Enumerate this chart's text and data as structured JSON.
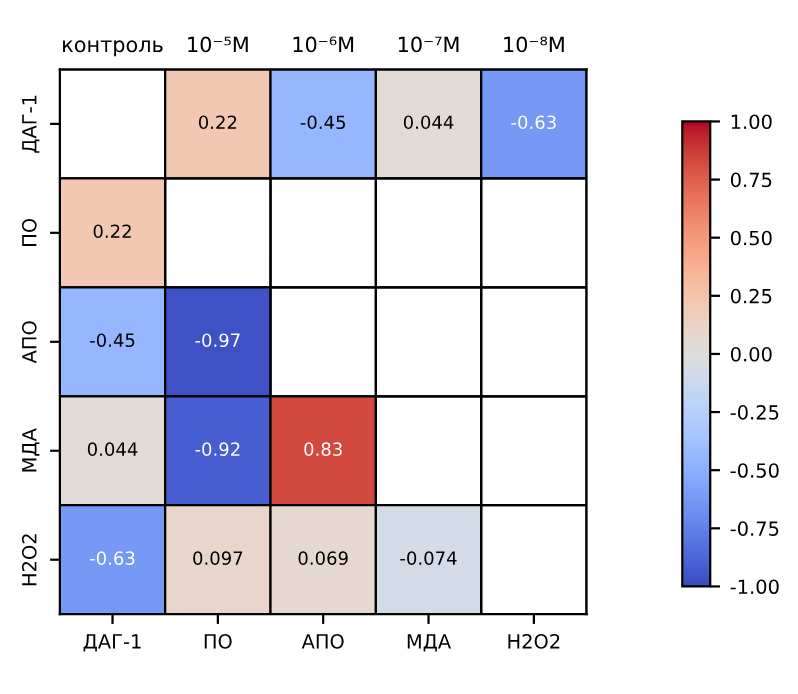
{
  "chart_data": {
    "type": "heatmap",
    "categories": [
      "ДАГ-1",
      "ПО",
      "АПО",
      "МДА",
      "H2O2"
    ],
    "annotations": [
      "контроль",
      "10⁻⁵M",
      "10⁻⁶M",
      "10⁻⁷M",
      "10⁻⁸M"
    ],
    "y_categories": [
      "ДАГ-1",
      "ПО",
      "АПО",
      "МДА",
      "H2O2"
    ],
    "cells": [
      [
        null,
        0.22,
        -0.45,
        0.044,
        -0.63
      ],
      [
        0.22,
        null,
        null,
        null,
        null
      ],
      [
        -0.45,
        -0.97,
        null,
        null,
        null
      ],
      [
        0.044,
        -0.92,
        0.83,
        null,
        null
      ],
      [
        -0.63,
        0.097,
        0.069,
        -0.074,
        null
      ]
    ],
    "data_labels": true,
    "clim": [
      -1.0,
      1.0
    ],
    "cticks": [
      {
        "value": -1,
        "label": "-1.00"
      },
      {
        "value": -0.75,
        "label": "-0.75"
      },
      {
        "value": -0.5,
        "label": "-0.50"
      },
      {
        "value": -0.25,
        "label": "-0.25"
      },
      {
        "value": 0,
        "label": "0.00"
      },
      {
        "value": 0.25,
        "label": "0.25"
      },
      {
        "value": 0.5,
        "label": "0.50"
      },
      {
        "value": 0.75,
        "label": "0.75"
      },
      {
        "value": 1,
        "label": "1.00"
      }
    ]
  }
}
